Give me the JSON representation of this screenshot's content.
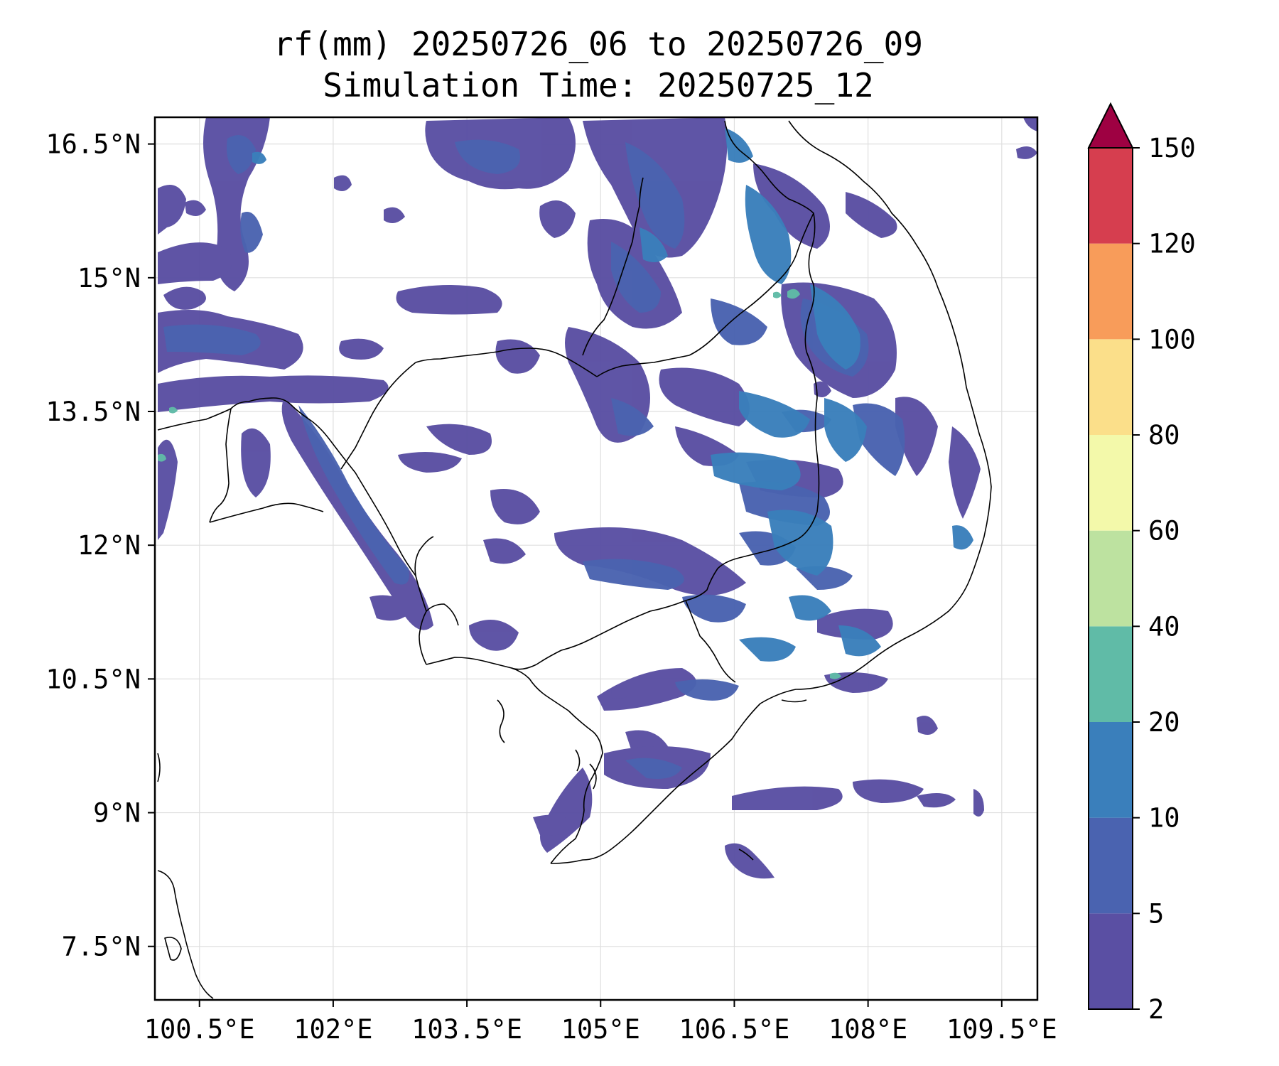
{
  "title": {
    "line1": "rf(mm) 20250726_06 to 20250726_09",
    "line2": "Simulation Time: 20250725_12"
  },
  "map": {
    "lon_range": [
      100.0,
      109.9
    ],
    "lat_range": [
      6.9,
      16.8
    ],
    "lon_ticks": [
      {
        "value": 100.5,
        "label": "100.5°E"
      },
      {
        "value": 102.0,
        "label": "102°E"
      },
      {
        "value": 103.5,
        "label": "103.5°E"
      },
      {
        "value": 105.0,
        "label": "105°E"
      },
      {
        "value": 106.5,
        "label": "106.5°E"
      },
      {
        "value": 108.0,
        "label": "108°E"
      },
      {
        "value": 109.5,
        "label": "109.5°E"
      }
    ],
    "lat_ticks": [
      {
        "value": 16.5,
        "label": "16.5°N"
      },
      {
        "value": 15.0,
        "label": "15°N"
      },
      {
        "value": 13.5,
        "label": "13.5°N"
      },
      {
        "value": 12.0,
        "label": "12°N"
      },
      {
        "value": 10.5,
        "label": "10.5°N"
      },
      {
        "value": 9.0,
        "label": "9°N"
      },
      {
        "value": 7.5,
        "label": "7.5°N"
      }
    ],
    "grid": true
  },
  "colorbar": {
    "levels": [
      {
        "value": 2,
        "label": "2"
      },
      {
        "value": 5,
        "label": "5"
      },
      {
        "value": 10,
        "label": "10"
      },
      {
        "value": 20,
        "label": "20"
      },
      {
        "value": 40,
        "label": "40"
      },
      {
        "value": 60,
        "label": "60"
      },
      {
        "value": 80,
        "label": "80"
      },
      {
        "value": 100,
        "label": "100"
      },
      {
        "value": 120,
        "label": "120"
      },
      {
        "value": 150,
        "label": "150"
      }
    ],
    "colors": [
      "#5a4fa3",
      "#4a63b0",
      "#3a7fbb",
      "#60bba7",
      "#bde2a0",
      "#f3f9aa",
      "#fbdf8a",
      "#f89c5a",
      "#d63e4f"
    ],
    "extend_color": "#9e0142"
  },
  "colors": {
    "c2": "#5a4fa3",
    "c5": "#4a63b0",
    "c10": "#3a7fbb",
    "c20": "#60bba7"
  }
}
